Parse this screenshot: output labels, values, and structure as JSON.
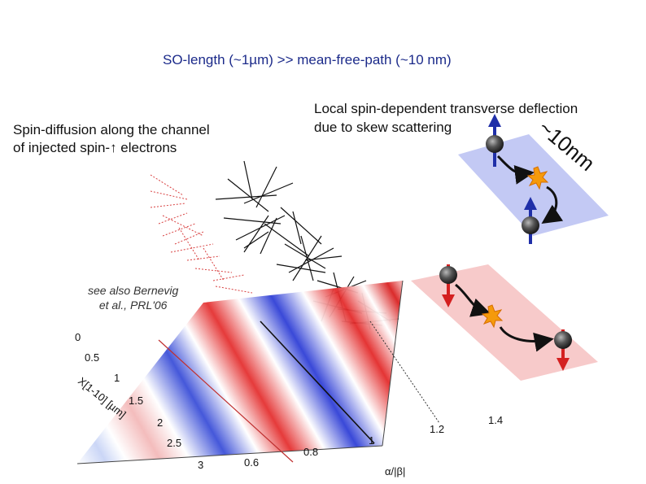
{
  "title": "SO-length (~1µm) >> mean-free-path (~10 nm)",
  "left_caption": {
    "line1": "Spin-diffusion along the channel",
    "line2": "of injected spin-↑ electrons"
  },
  "right_caption": {
    "line1": "Local spin-dependent transverse deflection",
    "line2": "due to skew scattering"
  },
  "scale_label": "~10nm",
  "reference_note": {
    "line1": "see also Bernevig",
    "line2": "et al., PRL'06"
  },
  "plot": {
    "x_axis_label": "α/|β|",
    "x_ticks": [
      "0.6",
      "0.8",
      "1",
      "1.2",
      "1.4"
    ],
    "y_axis_label": "X[1-10] [µm]",
    "y_ticks": [
      "0",
      "0.5",
      "1",
      "1.5",
      "2",
      "2.5",
      "3"
    ]
  },
  "colors": {
    "title": "#1b2a8a",
    "spin_up_arrow": "#1f2fa8",
    "spin_down_arrow": "#d42020",
    "blue_plane": "#b9bff2",
    "pink_plane": "#f6c1c1",
    "impurity": "#f59a0c"
  }
}
